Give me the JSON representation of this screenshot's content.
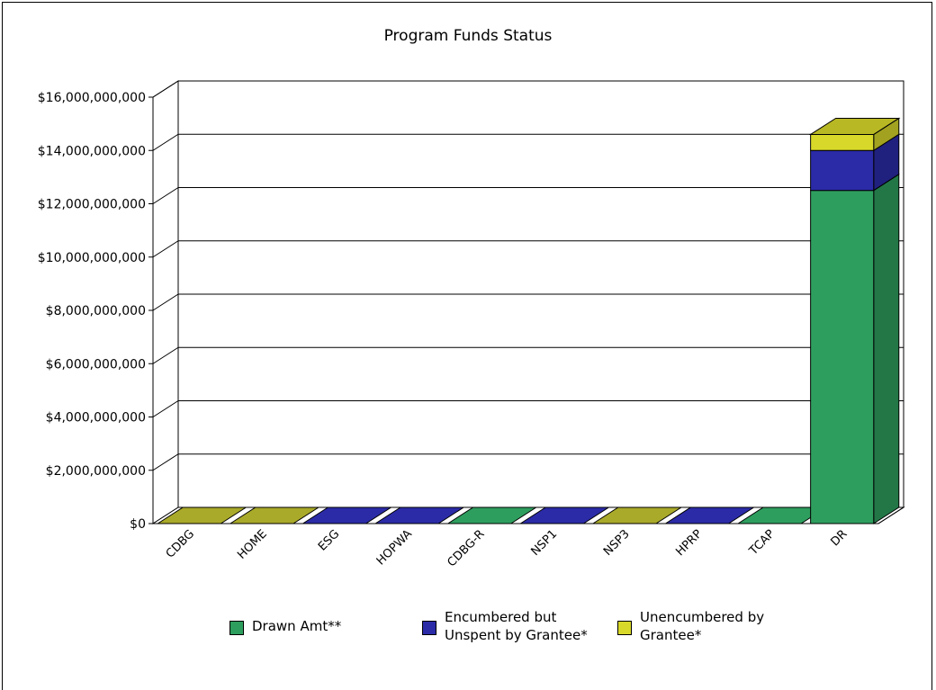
{
  "chart_data": {
    "type": "bar",
    "stacked": true,
    "three_d": true,
    "title": "Program Funds Status",
    "xlabel": "",
    "ylabel": "",
    "ylim": [
      0,
      16000000000
    ],
    "yticks": [
      "$0",
      "$2,000,000,000",
      "$4,000,000,000",
      "$6,000,000,000",
      "$8,000,000,000",
      "$10,000,000,000",
      "$12,000,000,000",
      "$14,000,000,000",
      "$16,000,000,000"
    ],
    "ytick_values": [
      0,
      2000000000,
      4000000000,
      6000000000,
      8000000000,
      10000000000,
      12000000000,
      14000000000,
      16000000000
    ],
    "grid": true,
    "legend_position": "bottom",
    "categories": [
      "CDBG",
      "HOME",
      "ESG",
      "HOPWA",
      "CDBG-R",
      "NSP1",
      "NSP3",
      "HPRP",
      "TCAP",
      "DR"
    ],
    "series": [
      {
        "name": "Drawn Amt**",
        "color": "#2e9e5e",
        "values": [
          0,
          0,
          0,
          0,
          0,
          0,
          0,
          0,
          0,
          12500000000
        ]
      },
      {
        "name": "Encumbered but\nUnspent by Grantee*",
        "color": "#2b2ba8",
        "values": [
          0,
          0,
          0,
          0,
          0,
          0,
          0,
          0,
          0,
          1500000000
        ]
      },
      {
        "name": "Unencumbered by\nGrantee*",
        "color": "#d8d82a",
        "values": [
          0,
          0,
          0,
          0,
          0,
          0,
          0,
          0,
          0,
          600000000
        ]
      }
    ]
  }
}
